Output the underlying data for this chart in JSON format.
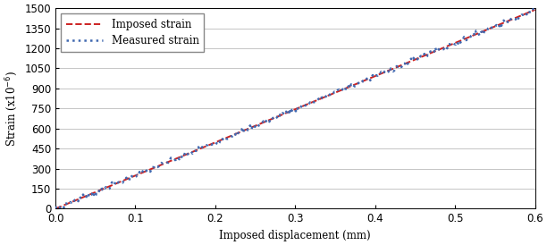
{
  "title": "",
  "xlabel": "Imposed displacement (mm)",
  "ylabel": "Strain (x10⁻⁶)",
  "xlim": [
    0.0,
    0.6
  ],
  "ylim": [
    0,
    1500
  ],
  "xticks": [
    0.0,
    0.1,
    0.2,
    0.3,
    0.4,
    0.5,
    0.6
  ],
  "yticks": [
    0,
    150,
    300,
    450,
    600,
    750,
    900,
    1050,
    1200,
    1350,
    1500
  ],
  "measured_color": "#4169B0",
  "imposed_color": "#CC2222",
  "background_color": "#FFFFFF",
  "grid_color": "#BBBBBB",
  "slope_measured": 2480,
  "slope_imposed": 2480,
  "noise_amplitude": 10,
  "n_points": 400,
  "legend_measured": "Measured strain",
  "legend_imposed": "Imposed strain",
  "figsize": [
    6.12,
    2.74
  ],
  "dpi": 100
}
